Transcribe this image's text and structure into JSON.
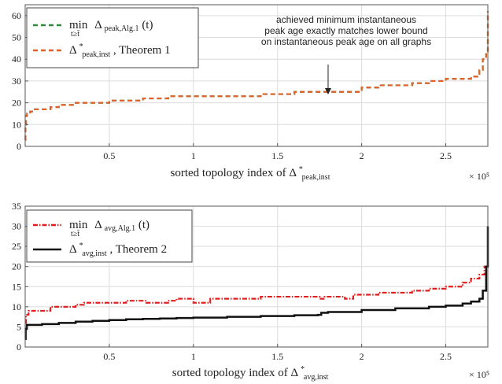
{
  "chart_data": [
    {
      "type": "line",
      "xlabel": "sorted topology index of Δ*peak,inst",
      "xlabel_parts": {
        "main": "sorted topology index of Δ",
        "sup": "*",
        "sub": "peak,inst"
      },
      "x_multiplier": "× 10⁵",
      "xlim": [
        0,
        2.75
      ],
      "ylim": [
        0,
        65
      ],
      "xticks": [
        0.5,
        1,
        1.5,
        2,
        2.5
      ],
      "xtick_labels": [
        "0.5",
        "1",
        "1.5",
        "2",
        "2.5"
      ],
      "yticks": [
        0,
        10,
        20,
        30,
        40,
        50,
        60
      ],
      "ytick_labels": [
        "0",
        "10",
        "20",
        "30",
        "40",
        "50",
        "60"
      ],
      "grid": true,
      "legend_placement": "top-left",
      "annotation": {
        "lines": [
          "achieved minimum instantaneous",
          "peak age exactly matches lower bound",
          "on instantaneous peak age on all graphs"
        ],
        "arrow_target": {
          "x": 1.8,
          "y": 25
        }
      },
      "series": [
        {
          "name": "min_{t≥t̄} Δpeak,Alg.1(t)",
          "legend": {
            "prefix": "min",
            "under": "t≥t̄",
            "sym": "Δ",
            "sub": "peak,Alg.1",
            "suffix": "(t)"
          },
          "color": "#2e8b3d",
          "style": "dashed",
          "x": [
            0,
            0.002,
            0.005,
            0.01,
            0.03,
            0.05,
            0.1,
            0.15,
            0.2,
            0.3,
            0.4,
            0.5,
            0.55,
            0.7,
            0.85,
            1.0,
            1.1,
            1.2,
            1.4,
            1.5,
            1.6,
            1.7,
            1.8,
            1.85,
            1.95,
            2.0,
            2.1,
            2.2,
            2.3,
            2.4,
            2.5,
            2.6,
            2.65,
            2.7,
            2.72,
            2.74,
            2.75
          ],
          "y": [
            3,
            10,
            14,
            15,
            16,
            17,
            17,
            18,
            19,
            20,
            20,
            21,
            21,
            22,
            23,
            23,
            23,
            23,
            24,
            24,
            25,
            25,
            25,
            25,
            25,
            27,
            28,
            28,
            29,
            30,
            31,
            31,
            32,
            35,
            40,
            43,
            62
          ]
        },
        {
          "name": "Δ*peak,inst, Theorem 1",
          "legend": {
            "prefix": "",
            "under": "",
            "sym": "Δ",
            "sup": "*",
            "sub": "peak,inst",
            "suffix": ", Theorem 1"
          },
          "color": "#e0622a",
          "style": "dashed",
          "x": [
            0,
            0.002,
            0.005,
            0.01,
            0.03,
            0.05,
            0.1,
            0.15,
            0.2,
            0.3,
            0.4,
            0.5,
            0.55,
            0.7,
            0.85,
            1.0,
            1.1,
            1.2,
            1.4,
            1.5,
            1.6,
            1.7,
            1.8,
            1.85,
            1.95,
            2.0,
            2.1,
            2.2,
            2.3,
            2.4,
            2.5,
            2.6,
            2.65,
            2.7,
            2.72,
            2.74,
            2.75
          ],
          "y": [
            3,
            10,
            14,
            15,
            16,
            17,
            17,
            18,
            19,
            20,
            20,
            21,
            21,
            22,
            23,
            23,
            23,
            23,
            24,
            24,
            25,
            25,
            25,
            25,
            25,
            27,
            28,
            28,
            29,
            30,
            31,
            31,
            32,
            35,
            40,
            43,
            62
          ]
        }
      ]
    },
    {
      "type": "line",
      "xlabel": "sorted topology index of Δ*avg,inst",
      "xlabel_parts": {
        "main": "sorted topology index of Δ",
        "sup": "*",
        "sub": "avg,inst"
      },
      "x_multiplier": "× 10⁵",
      "xlim": [
        0,
        2.75
      ],
      "ylim": [
        0,
        35
      ],
      "xticks": [
        0.5,
        1,
        1.5,
        2,
        2.5
      ],
      "xtick_labels": [
        "0.5",
        "1",
        "1.5",
        "2",
        "2.5"
      ],
      "yticks": [
        0,
        5,
        10,
        15,
        20,
        25,
        30,
        35
      ],
      "ytick_labels": [
        "0",
        "5",
        "10",
        "15",
        "20",
        "25",
        "30",
        "35"
      ],
      "grid": true,
      "legend_placement": "top-left",
      "series": [
        {
          "name": "min_{t≥t̄} Δavg,Alg.1(t)",
          "legend": {
            "prefix": "min",
            "under": "t≥t̄",
            "sym": "Δ",
            "sub": "avg,Alg.1",
            "suffix": "(t)"
          },
          "color": "#e02020",
          "style": "dashdot",
          "x": [
            0,
            0.005,
            0.02,
            0.1,
            0.15,
            0.2,
            0.3,
            0.35,
            0.5,
            0.6,
            0.7,
            0.72,
            0.85,
            0.9,
            1.0,
            1.1,
            1.2,
            1.3,
            1.4,
            1.5,
            1.6,
            1.7,
            1.75,
            1.78,
            1.9,
            1.95,
            2.0,
            2.1,
            2.3,
            2.4,
            2.5,
            2.55,
            2.6,
            2.65,
            2.7,
            2.73,
            2.75
          ],
          "y": [
            6,
            8,
            9,
            9,
            10,
            10,
            10.5,
            11,
            11,
            11.5,
            11.5,
            11,
            11.5,
            12,
            11,
            12,
            12,
            12,
            12.5,
            12.5,
            12.5,
            12.5,
            12,
            12.5,
            12,
            13,
            13,
            13.5,
            14,
            14.5,
            15,
            15,
            16,
            17,
            18,
            20,
            21
          ]
        },
        {
          "name": "Δ*avg,inst, Theorem 2",
          "legend": {
            "prefix": "",
            "under": "",
            "sym": "Δ",
            "sup": "*",
            "sub": "avg,inst",
            "suffix": ", Theorem 2"
          },
          "color": "#111111",
          "style": "solid",
          "x": [
            0,
            0.003,
            0.01,
            0.05,
            0.1,
            0.2,
            0.3,
            0.4,
            0.5,
            0.6,
            0.7,
            0.8,
            0.9,
            1.0,
            1.2,
            1.4,
            1.6,
            1.74,
            1.76,
            1.8,
            2.0,
            2.2,
            2.4,
            2.5,
            2.6,
            2.65,
            2.7,
            2.72,
            2.74,
            2.75
          ],
          "y": [
            2,
            4.5,
            5.5,
            5.5,
            5.7,
            6,
            6.3,
            6.5,
            6.7,
            6.9,
            7,
            7.1,
            7.2,
            7.3,
            7.5,
            7.7,
            7.9,
            8,
            8.5,
            8.7,
            9.2,
            9.6,
            10,
            10.3,
            10.8,
            11.3,
            12,
            14,
            20,
            30
          ]
        }
      ]
    }
  ]
}
